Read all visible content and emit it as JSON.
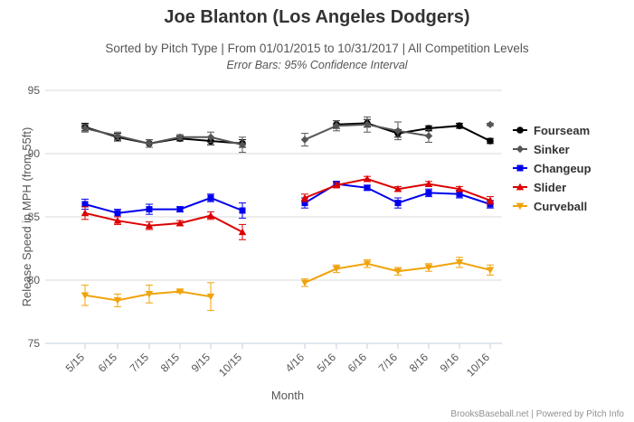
{
  "chart_data": {
    "type": "line",
    "title": "Joe Blanton (Los Angeles Dodgers)",
    "subtitle": "Sorted by Pitch Type | From 01/01/2015 to 10/31/2017 | All Competition Levels",
    "subtitle2": "Error Bars: 95% Confidence Interval",
    "xlabel": "Month",
    "ylabel": "Release Speed in MPH (from 55ft)",
    "ylim": [
      75,
      95
    ],
    "yticks": [
      75,
      80,
      85,
      90,
      95
    ],
    "grid": true,
    "legend_position": "right",
    "categories": [
      "5/15",
      "6/15",
      "7/15",
      "8/15",
      "9/15",
      "10/15",
      "4/16",
      "5/16",
      "6/16",
      "7/16",
      "8/16",
      "9/16",
      "10/16"
    ],
    "series": [
      {
        "name": "Fourseam",
        "color": "#000000",
        "marker": "circle",
        "values": [
          92.1,
          91.3,
          90.8,
          91.2,
          91.0,
          90.8,
          null,
          92.3,
          92.4,
          91.6,
          92.0,
          92.2,
          91.0
        ],
        "error": [
          0.3,
          0.3,
          0.3,
          0.2,
          0.3,
          0.3,
          null,
          0.3,
          0.3,
          0.3,
          0.2,
          0.2,
          0.2
        ]
      },
      {
        "name": "Sinker",
        "color": "#555555",
        "marker": "diamond",
        "values": [
          92.0,
          91.4,
          90.8,
          91.3,
          91.3,
          90.7,
          91.1,
          92.2,
          92.3,
          91.8,
          91.4,
          null,
          92.3
        ],
        "error": [
          0.3,
          0.3,
          0.3,
          0.2,
          0.4,
          0.6,
          0.5,
          0.4,
          0.6,
          0.7,
          0.5,
          null,
          0.1
        ]
      },
      {
        "name": "Changeup",
        "color": "#0000ee",
        "marker": "square",
        "values": [
          86.0,
          85.3,
          85.6,
          85.6,
          86.5,
          85.5,
          86.1,
          87.6,
          87.3,
          86.1,
          86.9,
          86.8,
          86.0
        ],
        "error": [
          0.4,
          0.3,
          0.4,
          0.2,
          0.3,
          0.6,
          0.4,
          0.2,
          0.2,
          0.4,
          0.3,
          0.3,
          0.3
        ]
      },
      {
        "name": "Slider",
        "color": "#dd0000",
        "marker": "triangle-up",
        "values": [
          85.3,
          84.7,
          84.3,
          84.5,
          85.1,
          83.8,
          86.5,
          87.5,
          88.0,
          87.2,
          87.6,
          87.2,
          86.3
        ],
        "error": [
          0.5,
          0.3,
          0.3,
          0.2,
          0.3,
          0.6,
          0.3,
          0.2,
          0.2,
          0.2,
          0.2,
          0.2,
          0.3
        ]
      },
      {
        "name": "Curveball",
        "color": "#f0a30a",
        "marker": "triangle-down",
        "values": [
          78.8,
          78.4,
          78.9,
          79.1,
          78.7,
          null,
          79.8,
          80.9,
          81.3,
          80.7,
          81.0,
          81.4,
          80.8
        ],
        "error": [
          0.8,
          0.5,
          0.7,
          0.1,
          1.1,
          null,
          0.3,
          0.3,
          0.3,
          0.3,
          0.3,
          0.4,
          0.4
        ]
      }
    ]
  },
  "credits": "BrooksBaseball.net | Powered by Pitch Info"
}
